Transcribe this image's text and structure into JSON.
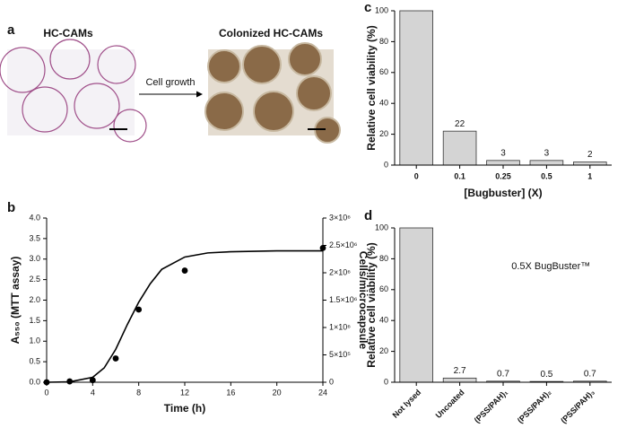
{
  "panel_labels": [
    "a",
    "b",
    "c",
    "d"
  ],
  "panel_a": {
    "left_title": "HC-CAMs",
    "right_title": "Colonized  HC-CAMs",
    "arrow_label": "Cell growth"
  },
  "chart_data": [
    {
      "type": "scatter",
      "xlabel": "Time (h)",
      "ylabel": "A₅₅₀ (MTT assay)",
      "y2label": "Cells/microcapsule",
      "xlim": [
        0,
        24
      ],
      "xticks": [
        0,
        4,
        8,
        12,
        16,
        20,
        24
      ],
      "ylim": [
        0,
        4.0
      ],
      "yticks": [
        {
          "value": 0,
          "label": "0.0"
        },
        {
          "value": 0.5,
          "label": "0.5"
        },
        {
          "value": 1,
          "label": "1.0"
        },
        {
          "value": 1.5,
          "label": "1.5"
        },
        {
          "value": 2,
          "label": "2.0"
        },
        {
          "value": 2.5,
          "label": "2.5"
        },
        {
          "value": 3,
          "label": "3.0"
        },
        {
          "value": 3.5,
          "label": "3.5"
        },
        {
          "value": 4,
          "label": "4.0"
        }
      ],
      "y2lim": [
        0,
        3000000
      ],
      "y2ticks": [
        0,
        {
          "value": 500000,
          "label": "5×10⁵"
        },
        {
          "value": 1000000,
          "label": "1×10⁶"
        },
        {
          "value": 1500000,
          "label": "1.5×10⁶"
        },
        {
          "value": 2000000,
          "label": "2×10⁶"
        },
        {
          "value": 2500000,
          "label": "2.5×10⁶"
        },
        {
          "value": 3000000,
          "label": "3×10⁶"
        }
      ],
      "series": [
        {
          "kind": "points",
          "color": "#000000",
          "x": [
            0,
            2,
            4,
            6,
            8,
            12,
            24
          ],
          "values": [
            0,
            0.02,
            0.05,
            0.58,
            1.77,
            2.72,
            3.27
          ]
        },
        {
          "kind": "line",
          "color": "#000000",
          "x": [
            0,
            2,
            4,
            5,
            6,
            7,
            8,
            9,
            10,
            12,
            14,
            16,
            20,
            24
          ],
          "values": [
            0,
            0.01,
            0.12,
            0.35,
            0.8,
            1.4,
            1.95,
            2.4,
            2.75,
            3.05,
            3.15,
            3.18,
            3.2,
            3.2
          ]
        }
      ]
    },
    {
      "type": "bar",
      "xlabel": "[Bugbuster] (X)",
      "ylabel": "Relative cell viability (%)",
      "categories": [
        "0",
        "0.1",
        "0.25",
        "0.5",
        "1"
      ],
      "values": [
        100,
        22,
        3,
        3,
        2
      ],
      "value_labels": [
        null,
        "22",
        "3",
        "3",
        "2"
      ],
      "color": "#d4d4d4",
      "ylim": [
        0,
        100
      ],
      "yticks": [
        0,
        20,
        40,
        60,
        80,
        100
      ],
      "rotate_labels": false
    },
    {
      "type": "bar",
      "ylabel": "Relative cell viability (%)",
      "annotation": "0.5X BugBuster™",
      "categories": [
        "Not lysed",
        "Uncoated",
        "(PSS/PAH)₁",
        "(PSS/PAH)₂",
        "(PSS/PAH)₃"
      ],
      "values": [
        100,
        2.7,
        0.7,
        0.5,
        0.7
      ],
      "value_labels": [
        null,
        "2.7",
        "0.7",
        "0.5",
        "0.7"
      ],
      "color": "#d4d4d4",
      "ylim": [
        0,
        100
      ],
      "yticks": [
        0,
        20,
        40,
        60,
        80,
        100
      ],
      "rotate_labels": true
    }
  ]
}
